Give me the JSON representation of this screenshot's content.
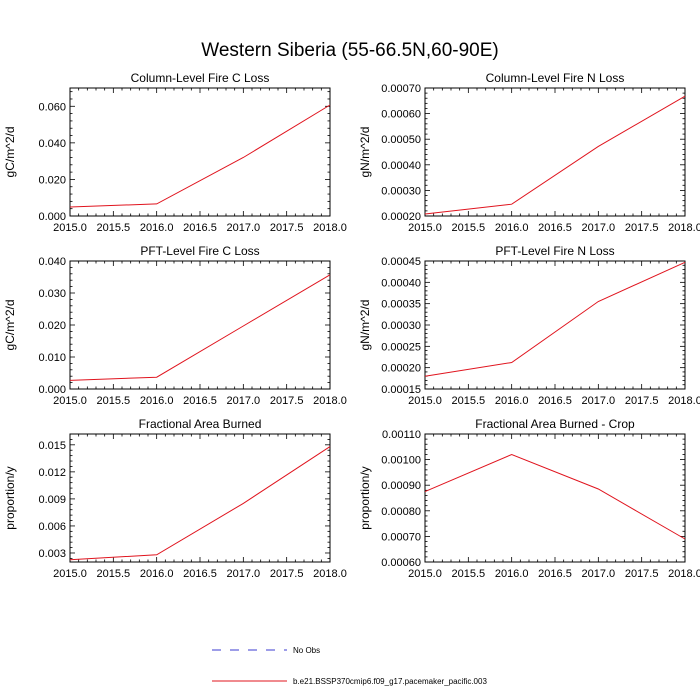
{
  "figure": {
    "title": "Western Siberia (55-66.5N,60-90E)"
  },
  "legend": {
    "entries": [
      {
        "label": "No Obs",
        "color": "#3b3bd0",
        "style": "dashed"
      },
      {
        "label": "b.e21.BSSP370cmip6.f09_g17.pacemaker_pacific.003",
        "color": "#e0141e",
        "style": "solid"
      }
    ]
  },
  "colors": {
    "series": "#e0141e",
    "axis": "#000000"
  },
  "chart_data": [
    {
      "type": "line",
      "title": "Column-Level Fire C Loss",
      "ylabel": "gC/m^2/d",
      "xlim": [
        2015.0,
        2018.0
      ],
      "ylim": [
        0.0,
        0.07
      ],
      "xticks": [
        "2015.0",
        "2015.5",
        "2016.0",
        "2016.5",
        "2017.0",
        "2017.5",
        "2018.0"
      ],
      "yticks": [
        "0.000",
        "0.020",
        "0.040",
        "0.060"
      ],
      "ytick_values": [
        0.0,
        0.02,
        0.04,
        0.06
      ],
      "x": [
        2015.0,
        2016.0,
        2017.0,
        2018.0
      ],
      "series": [
        {
          "values": [
            0.0049,
            0.0066,
            0.032,
            0.0607
          ]
        }
      ]
    },
    {
      "type": "line",
      "title": "Column-Level Fire N Loss",
      "ylabel": "gN/m^2/d",
      "xlim": [
        2015.0,
        2018.0
      ],
      "ylim": [
        0.0002,
        0.0007
      ],
      "xticks": [
        "2015.0",
        "2015.5",
        "2016.0",
        "2016.5",
        "2017.0",
        "2017.5",
        "2018.0"
      ],
      "yticks": [
        "0.00020",
        "0.00030",
        "0.00040",
        "0.00050",
        "0.00060",
        "0.00070"
      ],
      "ytick_values": [
        0.0002,
        0.0003,
        0.0004,
        0.0005,
        0.0006,
        0.0007
      ],
      "x": [
        2015.0,
        2016.0,
        2017.0,
        2018.0
      ],
      "series": [
        {
          "values": [
            0.000208,
            0.000246,
            0.000472,
            0.000668
          ]
        }
      ]
    },
    {
      "type": "line",
      "title": "PFT-Level Fire C Loss",
      "ylabel": "gC/m^2/d",
      "xlim": [
        2015.0,
        2018.0
      ],
      "ylim": [
        0.0,
        0.04
      ],
      "xticks": [
        "2015.0",
        "2015.5",
        "2016.0",
        "2016.5",
        "2017.0",
        "2017.5",
        "2018.0"
      ],
      "yticks": [
        "0.000",
        "0.010",
        "0.020",
        "0.030",
        "0.040"
      ],
      "ytick_values": [
        0.0,
        0.01,
        0.02,
        0.03,
        0.04
      ],
      "x": [
        2015.0,
        2016.0,
        2017.0,
        2018.0
      ],
      "series": [
        {
          "values": [
            0.0027,
            0.0037,
            0.0197,
            0.0357
          ]
        }
      ]
    },
    {
      "type": "line",
      "title": "PFT-Level Fire N Loss",
      "ylabel": "gN/m^2/d",
      "xlim": [
        2015.0,
        2018.0
      ],
      "ylim": [
        0.00015,
        0.00045
      ],
      "xticks": [
        "2015.0",
        "2015.5",
        "2016.0",
        "2016.5",
        "2017.0",
        "2017.5",
        "2018.0"
      ],
      "yticks": [
        "0.00015",
        "0.00020",
        "0.00025",
        "0.00030",
        "0.00035",
        "0.00040",
        "0.00045"
      ],
      "ytick_values": [
        0.00015,
        0.0002,
        0.00025,
        0.0003,
        0.00035,
        0.0004,
        0.00045
      ],
      "x": [
        2015.0,
        2016.0,
        2017.0,
        2018.0
      ],
      "series": [
        {
          "values": [
            0.00018,
            0.000212,
            0.000355,
            0.000447
          ]
        }
      ]
    },
    {
      "type": "line",
      "title": "Fractional Area Burned",
      "ylabel": "proportion/y",
      "xlim": [
        2015.0,
        2018.0
      ],
      "ylim": [
        0.002,
        0.0162
      ],
      "xticks": [
        "2015.0",
        "2015.5",
        "2016.0",
        "2016.5",
        "2017.0",
        "2017.5",
        "2018.0"
      ],
      "yticks": [
        "0.003",
        "0.006",
        "0.009",
        "0.012",
        "0.015"
      ],
      "ytick_values": [
        0.003,
        0.006,
        0.009,
        0.012,
        0.015
      ],
      "x": [
        2015.0,
        2016.0,
        2017.0,
        2018.0
      ],
      "series": [
        {
          "values": [
            0.00225,
            0.0028,
            0.0085,
            0.0148
          ]
        }
      ]
    },
    {
      "type": "line",
      "title": "Fractional Area Burned - Crop",
      "ylabel": "proportion/y",
      "xlim": [
        2015.0,
        2018.0
      ],
      "ylim": [
        0.0006,
        0.0011
      ],
      "xticks": [
        "2015.0",
        "2015.5",
        "2016.0",
        "2016.5",
        "2017.0",
        "2017.5",
        "2018.0"
      ],
      "yticks": [
        "0.00060",
        "0.00070",
        "0.00080",
        "0.00090",
        "0.00100",
        "0.00110"
      ],
      "ytick_values": [
        0.0006,
        0.0007,
        0.0008,
        0.0009,
        0.001,
        0.0011
      ],
      "x": [
        2015.0,
        2016.0,
        2017.0,
        2018.0
      ],
      "series": [
        {
          "values": [
            0.000875,
            0.00102,
            0.000885,
            0.00069
          ]
        }
      ]
    }
  ]
}
